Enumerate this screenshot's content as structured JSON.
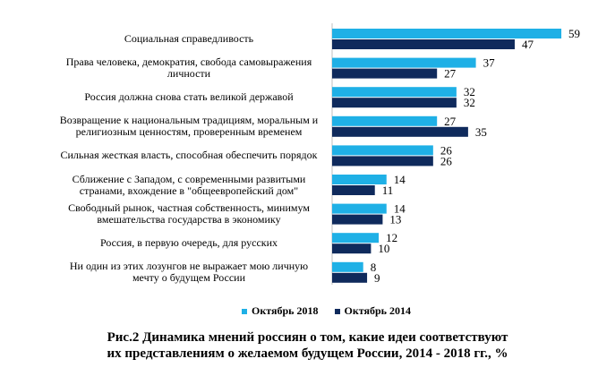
{
  "chart_data": {
    "type": "bar",
    "orientation": "horizontal",
    "categories": [
      "Социальная справедливость",
      "Права человека, демократия, свобода самовыражения личности",
      "Россия должна снова стать великой державой",
      "Возвращение к национальным традициям, моральным и религиозным ценностям, проверенным временем",
      "Сильная жесткая власть, способная обеспечить порядок",
      "Сближение с Западом, с современными развитыми странами, вхождение в \"общеевропейский дом\"",
      "Свободный рынок, частная собственность, минимум вмешательства государства в экономику",
      "Россия, в первую очередь, для русских",
      "Ни один из этих лозунгов не выражает мою личную мечту о будущем России"
    ],
    "category_lines": [
      [
        "Социальная справедливость"
      ],
      [
        "Права человека, демократия, свобода самовыражения",
        "личности"
      ],
      [
        "Россия должна снова стать великой державой"
      ],
      [
        "Возвращение к национальным традициям, моральным и",
        "религиозным ценностям, проверенным временем"
      ],
      [
        "Сильная жесткая власть, способная обеспечить порядок"
      ],
      [
        "Сближение с Западом, с современными развитыми",
        "странами, вхождение в \"общеевропейский дом\""
      ],
      [
        "Свободный рынок, частная собственность, минимум",
        "вмешательства государства в экономику"
      ],
      [
        "Россия, в первую очередь, для русских"
      ],
      [
        "Ни один из этих лозунгов не выражает мою личную",
        "мечту о будущем России"
      ]
    ],
    "series": [
      {
        "name": "Октябрь 2018",
        "color": "#1fb0e6",
        "values": [
          59,
          37,
          32,
          27,
          26,
          14,
          14,
          12,
          8
        ]
      },
      {
        "name": "Октябрь 2014",
        "color": "#0f2a5c",
        "values": [
          47,
          27,
          32,
          35,
          26,
          11,
          13,
          10,
          9
        ]
      }
    ],
    "xlim": [
      0,
      60
    ],
    "legend_position": "bottom",
    "grid": false
  },
  "caption": {
    "line1": "Рис.2 Динамика мнений россиян о том, какие идеи соответствуют",
    "line2": "их представлениям о желаемом будущем России, 2014 - 2018 гг., %"
  }
}
